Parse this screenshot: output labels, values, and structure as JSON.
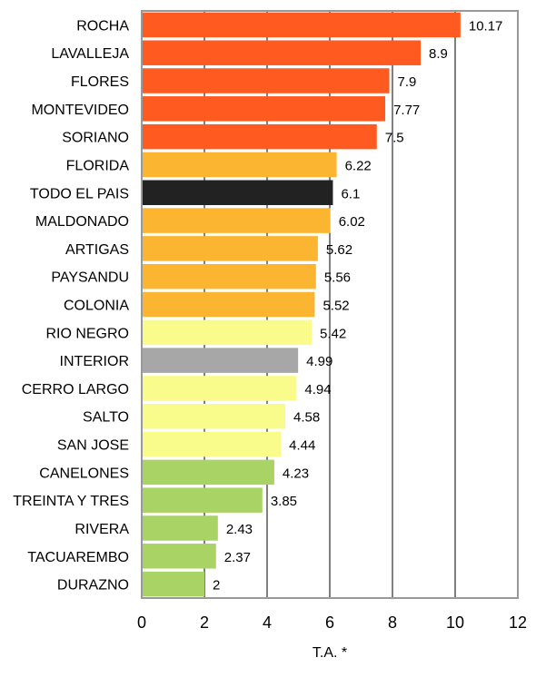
{
  "chart_data": {
    "type": "bar",
    "orientation": "horizontal",
    "xlabel": "T.A. *",
    "xlim": [
      0,
      12
    ],
    "xticks": [
      0,
      2,
      4,
      6,
      8,
      10,
      12
    ],
    "grid": "vertical",
    "categories": [
      "ROCHA",
      "LAVALLEJA",
      "FLORES",
      "MONTEVIDEO",
      "SORIANO",
      "FLORIDA",
      "TODO EL PAIS",
      "MALDONADO",
      "ARTIGAS",
      "PAYSANDU",
      "COLONIA",
      "RIO NEGRO",
      "INTERIOR",
      "CERRO LARGO",
      "SALTO",
      "SAN JOSE",
      "CANELONES",
      "TREINTA Y TRES",
      "RIVERA",
      "TACUAREMBO",
      "DURAZNO"
    ],
    "values": [
      10.17,
      8.9,
      7.9,
      7.77,
      7.5,
      6.22,
      6.1,
      6.02,
      5.62,
      5.56,
      5.52,
      5.42,
      4.99,
      4.94,
      4.58,
      4.44,
      4.23,
      3.85,
      2.43,
      2.37,
      2
    ],
    "value_labels": [
      "10.17",
      "8.9",
      "7.9",
      "7.77",
      "7.5",
      "6.22",
      "6.1",
      "6.02",
      "5.62",
      "5.56",
      "5.52",
      "5.42",
      "4.99",
      "4.94",
      "4.58",
      "4.44",
      "4.23",
      "3.85",
      "2.43",
      "2.37",
      "2"
    ],
    "colors": [
      "#ff5a1f",
      "#ff5a1f",
      "#ff5a1f",
      "#ff5a1f",
      "#ff5a1f",
      "#fbb530",
      "#222222",
      "#fbb530",
      "#fbb530",
      "#fbb530",
      "#fbb530",
      "#f9fb8a",
      "#a7a7a7",
      "#f9fb8a",
      "#f9fb8a",
      "#f9fb8a",
      "#aad366",
      "#aad366",
      "#aad366",
      "#aad366",
      "#aad366"
    ]
  }
}
